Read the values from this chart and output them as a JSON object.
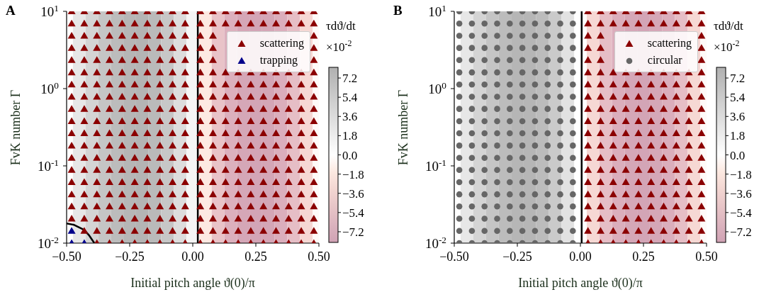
{
  "chart_data": [
    {
      "type": "scatter",
      "title": "A",
      "xlabel": "Initial pitch angle ϑ(0)/π",
      "ylabel": "FvK number Γ",
      "clabel": "τdϑ/dt",
      "annotations": [
        "×10$^{-2}$"
      ],
      "xlim": [
        -0.5,
        0.5
      ],
      "xticks": [
        {
          "value": -0.5,
          "label": "−0.50"
        },
        {
          "value": -0.25,
          "label": "−0.25"
        },
        {
          "value": 0,
          "label": "0.00"
        },
        {
          "value": 0.25,
          "label": "0.25"
        },
        {
          "value": 0.5,
          "label": "0.50"
        }
      ],
      "ylim": [
        0.01,
        10
      ],
      "yticks": [
        {
          "value": 0.01,
          "label": "10$^{-2}$"
        },
        {
          "value": 0.1,
          "label": "10$^{-1}$"
        },
        {
          "value": 1,
          "label": "10$^{0}$"
        },
        {
          "value": 10,
          "label": "10$^{1}$"
        }
      ],
      "log": "y",
      "legend": "top right",
      "clim": [
        -8.2,
        8.2
      ],
      "cticks": [
        {
          "value": -7.2,
          "label": "−7.2"
        },
        {
          "value": -5.4,
          "label": "−5.4"
        },
        {
          "value": -3.6,
          "label": "−3.6"
        },
        {
          "value": -1.8,
          "label": "−1.8"
        },
        {
          "value": 0,
          "label": "0.0"
        },
        1.8,
        3.6,
        5.4,
        7.2
      ],
      "ref_lines": [
        {
          "axis": "x",
          "value": 0.02,
          "color": "#000000"
        }
      ],
      "bands": [
        {
          "axis": "x",
          "from": -0.475,
          "to": -0.425,
          "color": "#e7e7e7"
        },
        {
          "axis": "x",
          "from": -0.425,
          "to": -0.375,
          "color": "#d4d4d4"
        },
        {
          "axis": "x",
          "from": -0.375,
          "to": -0.325,
          "color": "#c5c5c5"
        },
        {
          "axis": "x",
          "from": -0.325,
          "to": -0.275,
          "color": "#bcbcbc"
        },
        {
          "axis": "x",
          "from": -0.275,
          "to": -0.225,
          "color": "#b6b6b6"
        },
        {
          "axis": "x",
          "from": -0.225,
          "to": -0.175,
          "color": "#b4b4b4"
        },
        {
          "axis": "x",
          "from": -0.175,
          "to": -0.125,
          "color": "#bababa"
        },
        {
          "axis": "x",
          "from": -0.125,
          "to": -0.075,
          "color": "#c7c7c7"
        },
        {
          "axis": "x",
          "from": -0.075,
          "to": -0.025,
          "color": "#dddddd"
        },
        {
          "axis": "x",
          "from": -0.025,
          "to": 0.025,
          "color": "#f5f5f5"
        },
        {
          "axis": "x",
          "from": 0.025,
          "to": 0.075,
          "color": "#fde9e2"
        },
        {
          "axis": "x",
          "from": 0.075,
          "to": 0.125,
          "color": "#e9c3c8"
        },
        {
          "axis": "x",
          "from": 0.125,
          "to": 0.175,
          "color": "#dcb0bd"
        },
        {
          "axis": "x",
          "from": 0.175,
          "to": 0.225,
          "color": "#d5a7b7"
        },
        {
          "axis": "x",
          "from": 0.225,
          "to": 0.275,
          "color": "#d3a5b6"
        },
        {
          "axis": "x",
          "from": 0.275,
          "to": 0.325,
          "color": "#d4a6b6"
        },
        {
          "axis": "x",
          "from": 0.325,
          "to": 0.375,
          "color": "#dbaebc"
        },
        {
          "axis": "x",
          "from": 0.375,
          "to": 0.425,
          "color": "#e6bec6"
        },
        {
          "axis": "x",
          "from": 0.425,
          "to": 0.475,
          "color": "#f6d8d4"
        },
        {
          "axis": "x",
          "from": 0.475,
          "to": 0.5,
          "color": "#fefaf8"
        }
      ],
      "series": [
        {
          "type": "line",
          "color": "#000000",
          "marker": "none",
          "x": [
            -0.5,
            -0.47,
            -0.43,
            -0.41,
            -0.39
          ],
          "values": [
            0.018,
            0.0172,
            0.0148,
            0.0125,
            0.01
          ]
        },
        {
          "name": "scattering",
          "color": "#8b0000",
          "marker": "triangle",
          "x": [
            -0.38,
            -0.33,
            -0.28,
            -0.23,
            -0.18,
            -0.13,
            -0.08,
            -0.03,
            0.03,
            0.08,
            0.13,
            0.18,
            0.23,
            0.28,
            0.33,
            0.38,
            0.43,
            0.48,
            -0.43,
            -0.38,
            -0.33,
            -0.28,
            -0.23,
            -0.18,
            -0.13,
            -0.08,
            -0.03,
            0.03,
            0.08,
            0.13,
            0.18,
            0.23,
            0.28,
            0.33,
            0.38,
            0.43,
            0.48,
            -0.48,
            -0.43,
            -0.38,
            -0.33,
            -0.28,
            -0.23,
            -0.18,
            -0.13,
            -0.08,
            -0.03,
            0.03,
            0.08,
            0.13,
            0.18,
            0.23,
            0.28,
            0.33,
            0.38,
            0.43,
            0.48,
            -0.48,
            -0.43,
            -0.38,
            -0.33,
            -0.28,
            -0.23,
            -0.18,
            -0.13,
            -0.08,
            -0.03,
            0.03,
            0.08,
            0.13,
            0.18,
            0.23,
            0.28,
            0.33,
            0.38,
            0.43,
            0.48,
            -0.48,
            -0.43,
            -0.38,
            -0.33,
            -0.28,
            -0.23,
            -0.18,
            -0.13,
            -0.08,
            -0.03,
            0.03,
            0.08,
            0.13,
            0.18,
            0.23,
            0.28,
            0.33,
            0.38,
            0.43,
            0.48,
            -0.48,
            -0.43,
            -0.38,
            -0.33,
            -0.28,
            -0.23,
            -0.18,
            -0.13,
            -0.08,
            -0.03,
            0.03,
            0.08,
            0.13,
            0.18,
            0.23,
            0.28,
            0.33,
            0.38,
            0.43,
            0.48,
            -0.48,
            -0.43,
            -0.38,
            -0.33,
            -0.28,
            -0.23,
            -0.18,
            -0.13,
            -0.08,
            -0.03,
            0.03,
            0.08,
            0.13,
            0.18,
            0.23,
            0.28,
            0.33,
            0.38,
            0.43,
            0.48,
            -0.48,
            -0.43,
            -0.38,
            -0.33,
            -0.28,
            -0.23,
            -0.18,
            -0.13,
            -0.08,
            -0.03,
            0.03,
            0.08,
            0.13,
            0.18,
            0.23,
            0.28,
            0.33,
            0.38,
            0.43,
            0.48,
            -0.48,
            -0.43,
            -0.38,
            -0.33,
            -0.28,
            -0.23,
            -0.18,
            -0.13,
            -0.08,
            -0.03,
            0.03,
            0.08,
            0.13,
            0.18,
            0.23,
            0.28,
            0.33,
            0.38,
            0.43,
            0.48,
            -0.48,
            -0.43,
            -0.38,
            -0.33,
            -0.28,
            -0.23,
            -0.18,
            -0.13,
            -0.08,
            -0.03,
            0.03,
            0.08,
            0.13,
            0.18,
            0.23,
            0.28,
            0.33,
            0.38,
            0.43,
            0.48,
            -0.48,
            -0.43,
            -0.38,
            -0.33,
            -0.28,
            -0.23,
            -0.18,
            -0.13,
            -0.08,
            -0.03,
            0.03,
            0.08,
            0.13,
            0.18,
            0.23,
            0.28,
            0.33,
            0.38,
            0.43,
            0.48,
            -0.48,
            -0.43,
            -0.38,
            -0.33,
            -0.28,
            -0.23,
            -0.18,
            -0.13,
            -0.08,
            -0.03,
            0.03,
            0.08,
            0.13,
            0.18,
            0.23,
            0.28,
            0.33,
            0.38,
            0.43,
            0.48,
            -0.48,
            -0.43,
            -0.38,
            -0.33,
            -0.28,
            -0.23,
            -0.18,
            -0.13,
            -0.08,
            -0.03,
            0.03,
            0.08,
            0.13,
            0.18,
            0.23,
            0.28,
            0.33,
            0.38,
            0.43,
            0.48,
            -0.48,
            -0.43,
            -0.38,
            -0.33,
            -0.28,
            -0.23,
            -0.18,
            -0.13,
            -0.08,
            -0.03,
            0.03,
            0.08,
            0.13,
            0.18,
            0.23,
            0.28,
            0.33,
            0.38,
            0.43,
            0.48,
            -0.48,
            -0.43,
            -0.38,
            -0.33,
            -0.28,
            -0.23,
            -0.18,
            -0.13,
            -0.08,
            -0.03,
            0.03,
            0.08,
            0.13,
            0.18,
            0.23,
            0.28,
            0.33,
            0.38,
            0.43,
            0.48,
            -0.48,
            -0.43,
            -0.38,
            -0.33,
            -0.28,
            -0.23,
            -0.18,
            -0.13,
            -0.08,
            -0.03,
            0.03,
            0.08,
            0.13,
            0.18,
            0.23,
            0.28,
            0.33,
            0.38,
            0.43,
            0.48,
            -0.48,
            -0.43,
            -0.38,
            -0.33,
            -0.28,
            -0.23,
            -0.18,
            -0.13,
            -0.08,
            -0.03,
            0.03,
            0.08,
            0.13,
            0.18,
            0.23,
            0.28,
            0.33,
            0.38,
            0.43,
            0.48,
            -0.48,
            -0.43,
            -0.38,
            -0.33,
            -0.28,
            -0.23,
            -0.18,
            -0.13,
            -0.08,
            -0.03,
            0.03,
            0.08,
            0.13,
            0.18,
            0.23,
            0.28,
            0.33,
            0.38,
            0.43,
            0.48,
            -0.48,
            -0.43,
            -0.38,
            -0.33,
            -0.28,
            -0.23,
            -0.18,
            -0.13,
            -0.08,
            -0.03,
            0.03,
            0.08,
            0.13,
            0.18,
            0.23,
            0.28,
            0.33,
            0.38,
            0.43,
            0.48,
            -0.48,
            -0.43,
            -0.38,
            -0.33,
            -0.28,
            -0.23,
            -0.18,
            -0.13,
            -0.08,
            -0.03,
            0.03,
            0.08,
            0.13,
            0.18,
            0.23,
            0.28,
            0.33,
            0.38,
            0.43,
            0.48
          ],
          "values": [
            0.01,
            0.01,
            0.01,
            0.01,
            0.01,
            0.01,
            0.01,
            0.01,
            0.01,
            0.01,
            0.01,
            0.01,
            0.01,
            0.01,
            0.01,
            0.01,
            0.01,
            0.01,
            0.0144,
            0.0144,
            0.0144,
            0.0144,
            0.0144,
            0.0144,
            0.0144,
            0.0144,
            0.0144,
            0.0144,
            0.0144,
            0.0144,
            0.0144,
            0.0144,
            0.0144,
            0.0144,
            0.0144,
            0.0144,
            0.0144,
            0.0207,
            0.0207,
            0.0207,
            0.0207,
            0.0207,
            0.0207,
            0.0207,
            0.0207,
            0.0207,
            0.0207,
            0.0207,
            0.0207,
            0.0207,
            0.0207,
            0.0207,
            0.0207,
            0.0207,
            0.0207,
            0.0207,
            0.0207,
            0.0298,
            0.0298,
            0.0298,
            0.0298,
            0.0298,
            0.0298,
            0.0298,
            0.0298,
            0.0298,
            0.0298,
            0.0298,
            0.0298,
            0.0298,
            0.0298,
            0.0298,
            0.0298,
            0.0298,
            0.0298,
            0.0298,
            0.0298,
            0.0428,
            0.0428,
            0.0428,
            0.0428,
            0.0428,
            0.0428,
            0.0428,
            0.0428,
            0.0428,
            0.0428,
            0.0428,
            0.0428,
            0.0428,
            0.0428,
            0.0428,
            0.0428,
            0.0428,
            0.0428,
            0.0428,
            0.0428,
            0.0616,
            0.0616,
            0.0616,
            0.0616,
            0.0616,
            0.0616,
            0.0616,
            0.0616,
            0.0616,
            0.0616,
            0.0616,
            0.0616,
            0.0616,
            0.0616,
            0.0616,
            0.0616,
            0.0616,
            0.0616,
            0.0616,
            0.0616,
            0.0886,
            0.0886,
            0.0886,
            0.0886,
            0.0886,
            0.0886,
            0.0886,
            0.0886,
            0.0886,
            0.0886,
            0.0886,
            0.0886,
            0.0886,
            0.0886,
            0.0886,
            0.0886,
            0.0886,
            0.0886,
            0.0886,
            0.0886,
            0.127,
            0.127,
            0.127,
            0.127,
            0.127,
            0.127,
            0.127,
            0.127,
            0.127,
            0.127,
            0.127,
            0.127,
            0.127,
            0.127,
            0.127,
            0.127,
            0.127,
            0.127,
            0.127,
            0.127,
            0.183,
            0.183,
            0.183,
            0.183,
            0.183,
            0.183,
            0.183,
            0.183,
            0.183,
            0.183,
            0.183,
            0.183,
            0.183,
            0.183,
            0.183,
            0.183,
            0.183,
            0.183,
            0.183,
            0.183,
            0.264,
            0.264,
            0.264,
            0.264,
            0.264,
            0.264,
            0.264,
            0.264,
            0.264,
            0.264,
            0.264,
            0.264,
            0.264,
            0.264,
            0.264,
            0.264,
            0.264,
            0.264,
            0.264,
            0.264,
            0.379,
            0.379,
            0.379,
            0.379,
            0.379,
            0.379,
            0.379,
            0.379,
            0.379,
            0.379,
            0.379,
            0.379,
            0.379,
            0.379,
            0.379,
            0.379,
            0.379,
            0.379,
            0.379,
            0.379,
            0.546,
            0.546,
            0.546,
            0.546,
            0.546,
            0.546,
            0.546,
            0.546,
            0.546,
            0.546,
            0.546,
            0.546,
            0.546,
            0.546,
            0.546,
            0.546,
            0.546,
            0.546,
            0.546,
            0.546,
            0.785,
            0.785,
            0.785,
            0.785,
            0.785,
            0.785,
            0.785,
            0.785,
            0.785,
            0.785,
            0.785,
            0.785,
            0.785,
            0.785,
            0.785,
            0.785,
            0.785,
            0.785,
            0.785,
            0.785,
            1.13,
            1.13,
            1.13,
            1.13,
            1.13,
            1.13,
            1.13,
            1.13,
            1.13,
            1.13,
            1.13,
            1.13,
            1.13,
            1.13,
            1.13,
            1.13,
            1.13,
            1.13,
            1.13,
            1.13,
            1.62,
            1.62,
            1.62,
            1.62,
            1.62,
            1.62,
            1.62,
            1.62,
            1.62,
            1.62,
            1.62,
            1.62,
            1.62,
            1.62,
            1.62,
            1.62,
            1.62,
            1.62,
            1.62,
            1.62,
            2.34,
            2.34,
            2.34,
            2.34,
            2.34,
            2.34,
            2.34,
            2.34,
            2.34,
            2.34,
            2.34,
            2.34,
            null,
            null,
            null,
            null,
            null,
            null,
            null,
            2.34,
            3.36,
            3.36,
            3.36,
            3.36,
            3.36,
            3.36,
            3.36,
            3.36,
            3.36,
            3.36,
            3.36,
            3.36,
            null,
            null,
            null,
            null,
            null,
            null,
            null,
            3.36,
            4.83,
            4.83,
            4.83,
            4.83,
            4.83,
            4.83,
            4.83,
            4.83,
            4.83,
            4.83,
            4.83,
            4.83,
            null,
            null,
            null,
            null,
            null,
            null,
            null,
            4.83,
            6.95,
            6.95,
            6.95,
            6.95,
            6.95,
            6.95,
            6.95,
            6.95,
            6.95,
            6.95,
            6.95,
            6.95,
            6.95,
            6.95,
            6.95,
            6.95,
            6.95,
            6.95,
            6.95,
            6.95,
            10,
            10,
            10,
            10,
            10,
            10,
            10,
            10,
            10,
            10,
            10,
            10,
            10,
            10,
            10,
            10,
            10,
            10,
            10,
            10
          ]
        },
        {
          "name": "trapping",
          "color": "#00008b",
          "marker": "triangle",
          "x": [
            -0.48,
            -0.43,
            -0.48
          ],
          "values": [
            0.01,
            0.01,
            0.0144
          ]
        }
      ]
    },
    {
      "type": "scatter",
      "title": "B",
      "xlabel": "Initial pitch angle ϑ(0)/π",
      "ylabel": "FvK number Γ",
      "clabel": "τdϑ/dt",
      "annotations": [
        "×10$^{-2}$"
      ],
      "xlim": [
        -0.5,
        0.5
      ],
      "xticks": [
        {
          "value": -0.5,
          "label": "−0.50"
        },
        {
          "value": -0.25,
          "label": "−0.25"
        },
        {
          "value": 0,
          "label": "0.00"
        },
        {
          "value": 0.25,
          "label": "0.25"
        },
        {
          "value": 0.5,
          "label": "0.50"
        }
      ],
      "ylim": [
        0.01,
        10
      ],
      "yticks": [
        {
          "value": 0.01,
          "label": "10$^{-2}$"
        },
        {
          "value": 0.1,
          "label": "10$^{-1}$"
        },
        {
          "value": 1,
          "label": "10$^{0}$"
        },
        {
          "value": 10,
          "label": "10$^{1}$"
        }
      ],
      "log": "y",
      "legend": "top right",
      "clim": [
        -8.2,
        8.2
      ],
      "cticks": [
        {
          "value": -7.2,
          "label": "−7.2"
        },
        {
          "value": -5.4,
          "label": "−5.4"
        },
        {
          "value": -3.6,
          "label": "−3.6"
        },
        {
          "value": -1.8,
          "label": "−1.8"
        },
        {
          "value": 0,
          "label": "0.0"
        },
        1.8,
        3.6,
        5.4,
        7.2
      ],
      "ref_lines": [
        {
          "axis": "x",
          "value": 0.005,
          "color": "#000000"
        }
      ],
      "bands": [
        {
          "axis": "x",
          "from": -0.475,
          "to": -0.425,
          "color": "#e7e7e7"
        },
        {
          "axis": "x",
          "from": -0.425,
          "to": -0.375,
          "color": "#d4d4d4"
        },
        {
          "axis": "x",
          "from": -0.375,
          "to": -0.325,
          "color": "#c5c5c5"
        },
        {
          "axis": "x",
          "from": -0.325,
          "to": -0.275,
          "color": "#bcbcbc"
        },
        {
          "axis": "x",
          "from": -0.275,
          "to": -0.225,
          "color": "#b6b6b6"
        },
        {
          "axis": "x",
          "from": -0.225,
          "to": -0.175,
          "color": "#b6b6b6"
        },
        {
          "axis": "x",
          "from": -0.175,
          "to": -0.125,
          "color": "#bcbcbc"
        },
        {
          "axis": "x",
          "from": -0.125,
          "to": -0.075,
          "color": "#cacaca"
        },
        {
          "axis": "x",
          "from": -0.075,
          "to": -0.025,
          "color": "#e2e2e2"
        },
        {
          "axis": "x",
          "from": 0.025,
          "to": 0.075,
          "color": "#f6d8d4"
        },
        {
          "axis": "x",
          "from": 0.075,
          "to": 0.125,
          "color": "#e6bec6"
        },
        {
          "axis": "x",
          "from": 0.125,
          "to": 0.175,
          "color": "#dbaebc"
        },
        {
          "axis": "x",
          "from": 0.175,
          "to": 0.225,
          "color": "#d5a7b7"
        },
        {
          "axis": "x",
          "from": 0.225,
          "to": 0.275,
          "color": "#d3a5b6"
        },
        {
          "axis": "x",
          "from": 0.275,
          "to": 0.325,
          "color": "#d5a7b7"
        },
        {
          "axis": "x",
          "from": 0.325,
          "to": 0.375,
          "color": "#dbaebc"
        },
        {
          "axis": "x",
          "from": 0.375,
          "to": 0.425,
          "color": "#e6bec6"
        },
        {
          "axis": "x",
          "from": 0.425,
          "to": 0.475,
          "color": "#f6d8d4"
        },
        {
          "axis": "x",
          "from": 0.475,
          "to": 0.5,
          "color": "#fefaf8"
        }
      ],
      "series": [
        {
          "name": "scattering",
          "color": "#8b0000",
          "marker": "triangle",
          "x": [
            0.03,
            0.08,
            0.13,
            0.18,
            0.23,
            0.28,
            0.33,
            0.38,
            0.43,
            0.48,
            0.03,
            0.08,
            0.13,
            0.18,
            0.23,
            0.28,
            0.33,
            0.38,
            0.43,
            0.48,
            0.03,
            0.08,
            0.13,
            0.18,
            0.23,
            0.28,
            0.33,
            0.38,
            0.43,
            0.48,
            0.03,
            0.08,
            0.13,
            0.18,
            0.23,
            0.28,
            0.33,
            0.38,
            0.43,
            0.48,
            0.03,
            0.08,
            0.13,
            0.18,
            0.23,
            0.28,
            0.33,
            0.38,
            0.43,
            0.48,
            0.03,
            0.08,
            0.13,
            0.18,
            0.23,
            0.28,
            0.33,
            0.38,
            0.43,
            0.48,
            0.03,
            0.08,
            0.13,
            0.18,
            0.23,
            0.28,
            0.33,
            0.38,
            0.43,
            0.48,
            0.03,
            0.08,
            0.13,
            0.18,
            0.23,
            0.28,
            0.33,
            0.38,
            0.43,
            0.48,
            0.03,
            0.08,
            0.13,
            0.18,
            0.23,
            0.28,
            0.33,
            0.38,
            0.43,
            0.48,
            0.03,
            0.08,
            0.13,
            0.18,
            0.23,
            0.28,
            0.33,
            0.38,
            0.43,
            0.48,
            0.03,
            0.08,
            0.13,
            0.18,
            0.23,
            0.28,
            0.33,
            0.38,
            0.43,
            0.48,
            0.03,
            0.08,
            0.13,
            0.18,
            0.23,
            0.28,
            0.33,
            0.38,
            0.43,
            0.48,
            0.03,
            0.08,
            0.13,
            0.18,
            0.23,
            0.28,
            0.33,
            0.38,
            0.43,
            0.48,
            0.03,
            0.08,
            0.13,
            0.18,
            0.23,
            0.28,
            0.33,
            0.38,
            0.43,
            0.48,
            0.03,
            0.08,
            0.13,
            0.18,
            0.23,
            0.28,
            0.33,
            0.38,
            0.43,
            0.48,
            0.03,
            0.08,
            0.13,
            0.18,
            0.23,
            0.28,
            0.33,
            0.38,
            0.43,
            0.48,
            0.03,
            0.08,
            0.13,
            0.18,
            0.23,
            0.28,
            0.33,
            0.38,
            0.43,
            0.48,
            0.03,
            0.08,
            0.13,
            0.18,
            0.23,
            0.28,
            0.33,
            0.38,
            0.43,
            0.48,
            0.03,
            0.08,
            0.13,
            0.18,
            0.23,
            0.28,
            0.33,
            0.38,
            0.43,
            0.48,
            0.03,
            0.08,
            0.13,
            0.18,
            0.23,
            0.28,
            0.33,
            0.38,
            0.43,
            0.48
          ],
          "values": [
            0.01,
            0.01,
            0.01,
            0.01,
            0.01,
            0.01,
            0.01,
            0.01,
            0.01,
            0.01,
            0.0144,
            0.0144,
            0.0144,
            0.0144,
            0.0144,
            0.0144,
            0.0144,
            0.0144,
            0.0144,
            0.0144,
            0.0207,
            0.0207,
            0.0207,
            0.0207,
            0.0207,
            0.0207,
            0.0207,
            0.0207,
            0.0207,
            0.0207,
            0.0298,
            0.0298,
            0.0298,
            0.0298,
            0.0298,
            0.0298,
            0.0298,
            0.0298,
            0.0298,
            0.0298,
            0.0428,
            0.0428,
            0.0428,
            0.0428,
            0.0428,
            0.0428,
            0.0428,
            0.0428,
            0.0428,
            0.0428,
            0.0616,
            0.0616,
            0.0616,
            0.0616,
            0.0616,
            0.0616,
            0.0616,
            0.0616,
            0.0616,
            0.0616,
            0.0886,
            0.0886,
            0.0886,
            0.0886,
            0.0886,
            0.0886,
            0.0886,
            0.0886,
            0.0886,
            0.0886,
            0.127,
            0.127,
            0.127,
            0.127,
            0.127,
            0.127,
            0.127,
            0.127,
            0.127,
            0.127,
            0.183,
            0.183,
            0.183,
            0.183,
            0.183,
            0.183,
            0.183,
            0.183,
            0.183,
            0.183,
            0.264,
            0.264,
            0.264,
            0.264,
            0.264,
            0.264,
            0.264,
            0.264,
            0.264,
            0.264,
            0.379,
            0.379,
            0.379,
            0.379,
            0.379,
            0.379,
            0.379,
            0.379,
            0.379,
            0.379,
            0.546,
            0.546,
            0.546,
            0.546,
            0.546,
            0.546,
            0.546,
            0.546,
            0.546,
            0.546,
            0.785,
            0.785,
            0.785,
            0.785,
            0.785,
            0.785,
            0.785,
            0.785,
            0.785,
            0.785,
            1.13,
            1.13,
            1.13,
            1.13,
            1.13,
            1.13,
            1.13,
            1.13,
            1.13,
            1.13,
            1.62,
            1.62,
            1.62,
            1.62,
            1.62,
            1.62,
            1.62,
            1.62,
            1.62,
            1.62,
            2.34,
            2.34,
            null,
            null,
            null,
            null,
            null,
            null,
            null,
            2.34,
            3.36,
            3.36,
            null,
            null,
            null,
            null,
            null,
            null,
            null,
            3.36,
            4.83,
            4.83,
            null,
            null,
            null,
            null,
            null,
            null,
            null,
            4.83,
            6.95,
            6.95,
            6.95,
            6.95,
            6.95,
            6.95,
            6.95,
            6.95,
            6.95,
            6.95,
            10,
            10,
            10,
            10,
            10,
            10,
            10,
            10,
            10,
            10
          ]
        },
        {
          "name": "circular",
          "color": "#666666",
          "marker": "circle",
          "x": [
            -0.48,
            -0.43,
            -0.38,
            -0.33,
            -0.28,
            -0.23,
            -0.18,
            -0.13,
            -0.08,
            -0.03,
            -0.48,
            -0.43,
            -0.38,
            -0.33,
            -0.28,
            -0.23,
            -0.18,
            -0.13,
            -0.08,
            -0.03,
            -0.48,
            -0.43,
            -0.38,
            -0.33,
            -0.28,
            -0.23,
            -0.18,
            -0.13,
            -0.08,
            -0.03,
            -0.48,
            -0.43,
            -0.38,
            -0.33,
            -0.28,
            -0.23,
            -0.18,
            -0.13,
            -0.08,
            -0.03,
            -0.48,
            -0.43,
            -0.38,
            -0.33,
            -0.28,
            -0.23,
            -0.18,
            -0.13,
            -0.08,
            -0.03,
            -0.48,
            -0.43,
            -0.38,
            -0.33,
            -0.28,
            -0.23,
            -0.18,
            -0.13,
            -0.08,
            -0.03,
            -0.48,
            -0.43,
            -0.38,
            -0.33,
            -0.28,
            -0.23,
            -0.18,
            -0.13,
            -0.08,
            -0.03,
            -0.48,
            -0.43,
            -0.38,
            -0.33,
            -0.28,
            -0.23,
            -0.18,
            -0.13,
            -0.08,
            -0.03,
            -0.48,
            -0.43,
            -0.38,
            -0.33,
            -0.28,
            -0.23,
            -0.18,
            -0.13,
            -0.08,
            -0.03,
            -0.48,
            -0.43,
            -0.38,
            -0.33,
            -0.28,
            -0.23,
            -0.18,
            -0.13,
            -0.08,
            -0.03,
            -0.48,
            -0.43,
            -0.38,
            -0.33,
            -0.28,
            -0.23,
            -0.18,
            -0.13,
            -0.08,
            -0.03,
            -0.48,
            -0.43,
            -0.38,
            -0.33,
            -0.28,
            -0.23,
            -0.18,
            -0.13,
            -0.08,
            -0.03,
            -0.48,
            -0.43,
            -0.38,
            -0.33,
            -0.28,
            -0.23,
            -0.18,
            -0.13,
            -0.08,
            -0.03,
            -0.48,
            -0.43,
            -0.38,
            -0.33,
            -0.28,
            -0.23,
            -0.18,
            -0.13,
            -0.08,
            -0.03,
            -0.48,
            -0.43,
            -0.38,
            -0.33,
            -0.28,
            -0.23,
            -0.18,
            -0.13,
            -0.08,
            -0.03,
            -0.48,
            -0.43,
            -0.38,
            -0.33,
            -0.28,
            -0.23,
            -0.18,
            -0.13,
            -0.08,
            -0.03,
            -0.48,
            -0.43,
            -0.38,
            -0.33,
            -0.28,
            -0.23,
            -0.18,
            -0.13,
            -0.08,
            -0.03,
            -0.48,
            -0.43,
            -0.38,
            -0.33,
            -0.28,
            -0.23,
            -0.18,
            -0.13,
            -0.08,
            -0.03,
            -0.48,
            -0.43,
            -0.38,
            -0.33,
            -0.28,
            -0.23,
            -0.18,
            -0.13,
            -0.08,
            -0.03,
            -0.48,
            -0.43,
            -0.38,
            -0.33,
            -0.28,
            -0.23,
            -0.18,
            -0.13,
            -0.08,
            -0.03
          ],
          "values": [
            0.01,
            0.01,
            0.01,
            0.01,
            0.01,
            0.01,
            0.01,
            0.01,
            0.01,
            0.01,
            0.0144,
            0.0144,
            0.0144,
            0.0144,
            0.0144,
            0.0144,
            0.0144,
            0.0144,
            0.0144,
            0.0144,
            0.0207,
            0.0207,
            0.0207,
            0.0207,
            0.0207,
            0.0207,
            0.0207,
            0.0207,
            0.0207,
            0.0207,
            0.0298,
            0.0298,
            0.0298,
            0.0298,
            0.0298,
            0.0298,
            0.0298,
            0.0298,
            0.0298,
            0.0298,
            0.0428,
            0.0428,
            0.0428,
            0.0428,
            0.0428,
            0.0428,
            0.0428,
            0.0428,
            0.0428,
            0.0428,
            0.0616,
            0.0616,
            0.0616,
            0.0616,
            0.0616,
            0.0616,
            0.0616,
            0.0616,
            0.0616,
            0.0616,
            0.0886,
            0.0886,
            0.0886,
            0.0886,
            0.0886,
            0.0886,
            0.0886,
            0.0886,
            0.0886,
            0.0886,
            0.127,
            0.127,
            0.127,
            0.127,
            0.127,
            0.127,
            0.127,
            0.127,
            0.127,
            0.127,
            0.183,
            0.183,
            0.183,
            0.183,
            0.183,
            0.183,
            0.183,
            0.183,
            0.183,
            0.183,
            0.264,
            0.264,
            0.264,
            0.264,
            0.264,
            0.264,
            0.264,
            0.264,
            0.264,
            0.264,
            0.379,
            0.379,
            0.379,
            0.379,
            0.379,
            0.379,
            0.379,
            0.379,
            0.379,
            0.379,
            0.546,
            0.546,
            0.546,
            0.546,
            0.546,
            0.546,
            0.546,
            0.546,
            0.546,
            0.546,
            0.785,
            0.785,
            0.785,
            0.785,
            0.785,
            0.785,
            0.785,
            0.785,
            0.785,
            0.785,
            1.13,
            1.13,
            1.13,
            1.13,
            1.13,
            1.13,
            1.13,
            1.13,
            1.13,
            1.13,
            1.62,
            1.62,
            1.62,
            1.62,
            1.62,
            1.62,
            1.62,
            1.62,
            1.62,
            1.62,
            2.34,
            2.34,
            2.34,
            2.34,
            2.34,
            2.34,
            2.34,
            2.34,
            2.34,
            2.34,
            3.36,
            3.36,
            3.36,
            3.36,
            3.36,
            3.36,
            3.36,
            3.36,
            3.36,
            3.36,
            4.83,
            4.83,
            4.83,
            4.83,
            4.83,
            4.83,
            4.83,
            4.83,
            4.83,
            4.83,
            6.95,
            6.95,
            6.95,
            6.95,
            6.95,
            6.95,
            6.95,
            6.95,
            6.95,
            6.95,
            10,
            10,
            10,
            10,
            10,
            10,
            10,
            10,
            10,
            10
          ]
        }
      ]
    }
  ]
}
